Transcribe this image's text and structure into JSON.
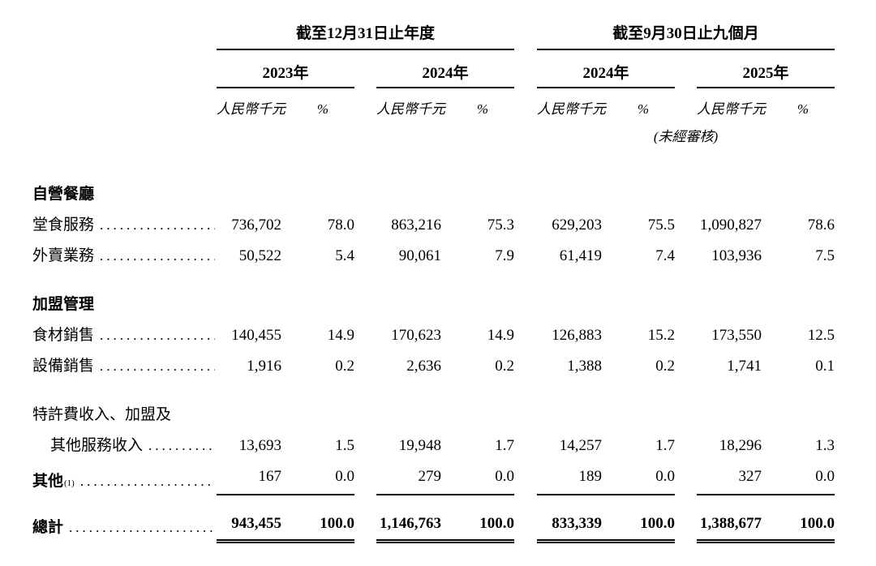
{
  "page": {
    "background": "#ffffff",
    "text_color": "#000000",
    "rule_color": "#000000"
  },
  "table": {
    "leader_dots": "....................................................",
    "unit_label": "人民幣千元",
    "percent_label": "%",
    "period_groups": [
      {
        "title": "截至12月31日止年度",
        "years": [
          {
            "label": "2023年"
          },
          {
            "label": "2024年"
          }
        ],
        "note": ""
      },
      {
        "title": "截至9月30日止九個月",
        "years": [
          {
            "label": "2024年"
          },
          {
            "label": "2025年"
          }
        ],
        "note": "(未經審核)"
      }
    ],
    "rows": [
      {
        "type": "section",
        "label": "自營餐廳",
        "space_before": "lg"
      },
      {
        "type": "data",
        "label": "堂食服務",
        "dots": true,
        "values": [
          "736,702",
          "78.0",
          "863,216",
          "75.3",
          "629,203",
          "75.5",
          "1,090,827",
          "78.6"
        ]
      },
      {
        "type": "data",
        "label": "外賣業務",
        "dots": true,
        "values": [
          "50,522",
          "5.4",
          "90,061",
          "7.9",
          "61,419",
          "7.4",
          "103,936",
          "7.5"
        ]
      },
      {
        "type": "section",
        "label": "加盟管理",
        "space_before": "md"
      },
      {
        "type": "data",
        "label": "食材銷售",
        "dots": true,
        "values": [
          "140,455",
          "14.9",
          "170,623",
          "14.9",
          "126,883",
          "15.2",
          "173,550",
          "12.5"
        ]
      },
      {
        "type": "data",
        "label": "設備銷售",
        "dots": true,
        "values": [
          "1,916",
          "0.2",
          "2,636",
          "0.2",
          "1,388",
          "0.2",
          "1,741",
          "0.1"
        ]
      },
      {
        "type": "caption",
        "label": "特許費收入、加盟及",
        "space_before": "md"
      },
      {
        "type": "data",
        "label": "其他服務收入",
        "indent": true,
        "dots": true,
        "values": [
          "13,693",
          "1.5",
          "19,948",
          "1.7",
          "14,257",
          "1.7",
          "18,296",
          "1.3"
        ]
      },
      {
        "type": "data",
        "label": "其他",
        "sup": "(1)",
        "bold_label": true,
        "dots": true,
        "rule_below": true,
        "values": [
          "167",
          "0.0",
          "279",
          "0.0",
          "189",
          "0.0",
          "327",
          "0.0"
        ]
      },
      {
        "type": "total",
        "label": "總計",
        "dots": true,
        "values": [
          "943,455",
          "100.0",
          "1,146,763",
          "100.0",
          "833,339",
          "100.0",
          "1,388,677",
          "100.0"
        ]
      }
    ]
  }
}
